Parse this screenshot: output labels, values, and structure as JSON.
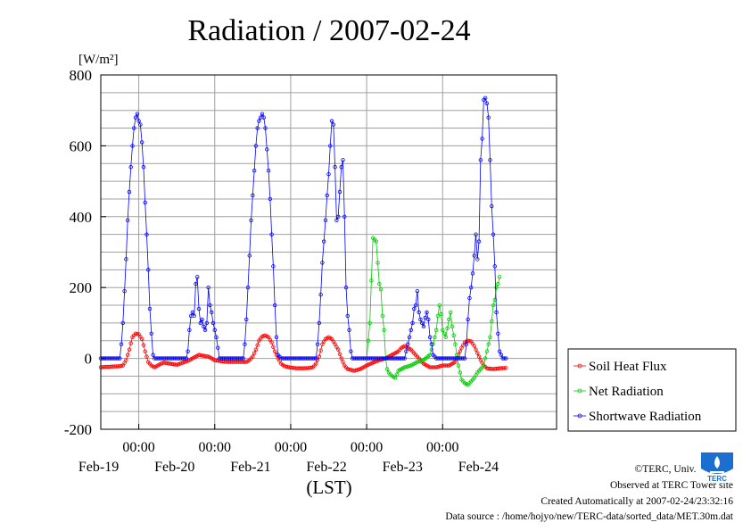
{
  "chart_data": {
    "type": "line",
    "title": "Radiation / 2007-02-24",
    "ylabel": "[W/m²]",
    "xlabel": "(LST)",
    "ylim": [
      -200,
      800
    ],
    "yticks": [
      -200,
      0,
      200,
      400,
      600,
      800
    ],
    "x_unit": "hours since Feb-18 12:00 LST",
    "xlim": [
      0,
      144
    ],
    "x_midnight_hours": [
      12,
      36,
      60,
      84,
      108
    ],
    "x_tick_labels": [
      {
        "time": "00:00",
        "date": "Feb-19"
      },
      {
        "time": "00:00",
        "date": "Feb-20"
      },
      {
        "time": "00:00",
        "date": "Feb-21"
      },
      {
        "time": "00:00",
        "date": "Feb-22"
      },
      {
        "time": "00:00",
        "date": "Feb-23"
      },
      {
        "time": "",
        "date": "Feb-24"
      }
    ],
    "grid": true,
    "legend_position": "right",
    "series": [
      {
        "name": "Soil Heat Flux",
        "color": "#ff0000",
        "marker": "circle",
        "points": [
          [
            0,
            -25
          ],
          [
            2,
            -24
          ],
          [
            4,
            -23
          ],
          [
            6,
            -22
          ],
          [
            7,
            -20
          ],
          [
            8,
            -5
          ],
          [
            9,
            25
          ],
          [
            10,
            60
          ],
          [
            11,
            70
          ],
          [
            12,
            68
          ],
          [
            13,
            55
          ],
          [
            14,
            20
          ],
          [
            15,
            -10
          ],
          [
            16,
            -20
          ],
          [
            17,
            -25
          ],
          [
            18,
            -20
          ],
          [
            19,
            -15
          ],
          [
            20,
            -12
          ],
          [
            22,
            -15
          ],
          [
            24,
            -18
          ],
          [
            26,
            -12
          ],
          [
            28,
            -5
          ],
          [
            30,
            5
          ],
          [
            31,
            10
          ],
          [
            32,
            8
          ],
          [
            34,
            5
          ],
          [
            36,
            -5
          ],
          [
            38,
            -8
          ],
          [
            40,
            -10
          ],
          [
            42,
            -10
          ],
          [
            44,
            -10
          ],
          [
            46,
            -10
          ],
          [
            47,
            -5
          ],
          [
            48,
            5
          ],
          [
            49,
            25
          ],
          [
            50,
            50
          ],
          [
            51,
            62
          ],
          [
            52,
            65
          ],
          [
            53,
            60
          ],
          [
            54,
            45
          ],
          [
            55,
            20
          ],
          [
            56,
            0
          ],
          [
            57,
            -15
          ],
          [
            58,
            -22
          ],
          [
            60,
            -26
          ],
          [
            62,
            -28
          ],
          [
            64,
            -28
          ],
          [
            66,
            -27
          ],
          [
            67,
            -25
          ],
          [
            68,
            -15
          ],
          [
            69,
            5
          ],
          [
            70,
            40
          ],
          [
            71,
            55
          ],
          [
            72,
            60
          ],
          [
            73,
            55
          ],
          [
            74,
            40
          ],
          [
            75,
            25
          ],
          [
            76,
            0
          ],
          [
            77,
            -20
          ],
          [
            78,
            -30
          ],
          [
            80,
            -35
          ],
          [
            82,
            -30
          ],
          [
            84,
            -20
          ],
          [
            86,
            -12
          ],
          [
            88,
            -5
          ],
          [
            90,
            0
          ],
          [
            92,
            10
          ],
          [
            94,
            20
          ],
          [
            95,
            30
          ],
          [
            96,
            35
          ],
          [
            97,
            30
          ],
          [
            98,
            25
          ],
          [
            99,
            15
          ],
          [
            100,
            5
          ],
          [
            101,
            -5
          ],
          [
            102,
            -15
          ],
          [
            103,
            -20
          ],
          [
            104,
            -25
          ],
          [
            106,
            -25
          ],
          [
            108,
            -20
          ],
          [
            110,
            -20
          ],
          [
            112,
            -10
          ],
          [
            113,
            10
          ],
          [
            114,
            30
          ],
          [
            115,
            45
          ],
          [
            116,
            50
          ],
          [
            117,
            48
          ],
          [
            118,
            35
          ],
          [
            119,
            15
          ],
          [
            120,
            -5
          ],
          [
            121,
            -20
          ],
          [
            122,
            -28
          ],
          [
            124,
            -30
          ],
          [
            126,
            -28
          ],
          [
            128,
            -27
          ]
        ]
      },
      {
        "name": "Net Radiation",
        "color": "#00cc00",
        "marker": "circle",
        "points": [
          [
            84,
            0
          ],
          [
            85,
            100
          ],
          [
            86,
            340
          ],
          [
            87,
            330
          ],
          [
            88,
            210
          ],
          [
            88.5,
            195
          ],
          [
            89,
            120
          ],
          [
            89.5,
            80
          ],
          [
            90,
            0
          ],
          [
            90.5,
            -30
          ],
          [
            91,
            -40
          ],
          [
            92,
            -50
          ],
          [
            93,
            -55
          ],
          [
            94,
            -35
          ],
          [
            96,
            -25
          ],
          [
            98,
            -20
          ],
          [
            100,
            -10
          ],
          [
            102,
            -5
          ],
          [
            104,
            10
          ],
          [
            105,
            40
          ],
          [
            106,
            80
          ],
          [
            106.5,
            120
          ],
          [
            107,
            150
          ],
          [
            107.5,
            125
          ],
          [
            108,
            80
          ],
          [
            109,
            60
          ],
          [
            110,
            110
          ],
          [
            110.5,
            130
          ],
          [
            111,
            90
          ],
          [
            112,
            40
          ],
          [
            113,
            -20
          ],
          [
            114,
            -60
          ],
          [
            115,
            -70
          ],
          [
            116,
            -75
          ],
          [
            117,
            -65
          ],
          [
            118,
            -55
          ],
          [
            119,
            -40
          ],
          [
            120,
            -30
          ],
          [
            121,
            -20
          ],
          [
            122,
            20
          ],
          [
            123,
            60
          ],
          [
            124,
            150
          ],
          [
            124.5,
            165
          ],
          [
            125,
            200
          ],
          [
            125.5,
            210
          ],
          [
            126,
            230
          ]
        ]
      },
      {
        "name": "Shortwave Radiation",
        "color": "#0000ff",
        "marker": "circle",
        "points": [
          [
            0,
            0
          ],
          [
            2,
            0
          ],
          [
            4,
            0
          ],
          [
            6,
            0
          ],
          [
            6.5,
            40
          ],
          [
            7,
            100
          ],
          [
            7.5,
            190
          ],
          [
            8,
            280
          ],
          [
            8.5,
            390
          ],
          [
            9,
            470
          ],
          [
            9.5,
            540
          ],
          [
            10,
            600
          ],
          [
            10.5,
            650
          ],
          [
            11,
            680
          ],
          [
            11.5,
            690
          ],
          [
            12,
            670
          ],
          [
            12.5,
            660
          ],
          [
            13,
            610
          ],
          [
            13.5,
            540
          ],
          [
            14,
            440
          ],
          [
            14.5,
            350
          ],
          [
            15,
            250
          ],
          [
            15.5,
            140
          ],
          [
            16,
            70
          ],
          [
            16.5,
            10
          ],
          [
            17,
            0
          ],
          [
            20,
            0
          ],
          [
            24,
            0
          ],
          [
            27,
            0
          ],
          [
            27.5,
            20
          ],
          [
            28,
            80
          ],
          [
            28.5,
            120
          ],
          [
            29,
            130
          ],
          [
            29.5,
            120
          ],
          [
            30,
            210
          ],
          [
            30.5,
            230
          ],
          [
            31,
            140
          ],
          [
            31.5,
            100
          ],
          [
            32,
            110
          ],
          [
            32.5,
            90
          ],
          [
            33,
            80
          ],
          [
            33.5,
            100
          ],
          [
            34,
            200
          ],
          [
            34.5,
            150
          ],
          [
            35,
            130
          ],
          [
            35.5,
            100
          ],
          [
            36,
            80
          ],
          [
            36.5,
            60
          ],
          [
            37,
            30
          ],
          [
            37.5,
            0
          ],
          [
            40,
            0
          ],
          [
            44,
            0
          ],
          [
            45,
            0
          ],
          [
            45.5,
            40
          ],
          [
            46,
            110
          ],
          [
            46.5,
            200
          ],
          [
            47,
            290
          ],
          [
            47.5,
            390
          ],
          [
            48,
            460
          ],
          [
            48.5,
            530
          ],
          [
            49,
            600
          ],
          [
            49.5,
            650
          ],
          [
            50,
            670
          ],
          [
            50.5,
            680
          ],
          [
            51,
            690
          ],
          [
            51.5,
            680
          ],
          [
            52,
            650
          ],
          [
            52.5,
            590
          ],
          [
            53,
            530
          ],
          [
            53.5,
            450
          ],
          [
            54,
            350
          ],
          [
            54.5,
            260
          ],
          [
            55,
            150
          ],
          [
            55.5,
            60
          ],
          [
            56,
            10
          ],
          [
            57,
            0
          ],
          [
            60,
            0
          ],
          [
            64,
            0
          ],
          [
            68,
            0
          ],
          [
            68.5,
            40
          ],
          [
            69,
            100
          ],
          [
            69.5,
            180
          ],
          [
            70,
            270
          ],
          [
            70.5,
            330
          ],
          [
            71,
            390
          ],
          [
            71.5,
            460
          ],
          [
            72,
            520
          ],
          [
            72.5,
            600
          ],
          [
            73,
            670
          ],
          [
            73.5,
            660
          ],
          [
            74,
            540
          ],
          [
            74.5,
            390
          ],
          [
            75,
            400
          ],
          [
            75.5,
            470
          ],
          [
            76,
            540
          ],
          [
            76.5,
            560
          ],
          [
            77,
            400
          ],
          [
            77.5,
            200
          ],
          [
            78,
            120
          ],
          [
            78.5,
            80
          ],
          [
            79,
            20
          ],
          [
            79.5,
            0
          ],
          [
            84,
            0
          ],
          [
            88,
            0
          ],
          [
            92,
            0
          ],
          [
            96,
            0
          ],
          [
            96.5,
            20
          ],
          [
            97,
            40
          ],
          [
            97.5,
            60
          ],
          [
            98,
            80
          ],
          [
            98.5,
            100
          ],
          [
            99,
            140
          ],
          [
            99.5,
            150
          ],
          [
            100,
            190
          ],
          [
            100.5,
            130
          ],
          [
            101,
            110
          ],
          [
            101.5,
            100
          ],
          [
            102,
            90
          ],
          [
            102.5,
            115
          ],
          [
            103,
            130
          ],
          [
            103.5,
            110
          ],
          [
            104,
            60
          ],
          [
            104.5,
            40
          ],
          [
            105,
            10
          ],
          [
            106,
            0
          ],
          [
            108,
            0
          ],
          [
            112,
            0
          ],
          [
            115,
            0
          ],
          [
            115.5,
            40
          ],
          [
            116,
            110
          ],
          [
            116.5,
            170
          ],
          [
            117,
            200
          ],
          [
            117.5,
            240
          ],
          [
            118,
            290
          ],
          [
            118.5,
            350
          ],
          [
            119,
            280
          ],
          [
            119.5,
            330
          ],
          [
            120,
            560
          ],
          [
            120.5,
            620
          ],
          [
            121,
            730
          ],
          [
            121.5,
            735
          ],
          [
            122,
            720
          ],
          [
            122.5,
            680
          ],
          [
            123,
            560
          ],
          [
            123.5,
            430
          ],
          [
            124,
            350
          ],
          [
            124.5,
            260
          ],
          [
            125,
            130
          ],
          [
            125.5,
            70
          ],
          [
            126,
            20
          ],
          [
            127,
            0
          ],
          [
            128,
            0
          ]
        ]
      }
    ]
  },
  "footer": {
    "copyright": "©TERC, Univ. Tsukuba",
    "observed": "Observed at TERC Tower site",
    "created": "Created Automatically at 2007-02-24/23:32:16",
    "source": "Data source : /home/hojyo/new/TERC-data/sorted_data/MET.30m.dat"
  },
  "logo": {
    "text": "TERC",
    "color": "#1a6fd0",
    "icon": "terc-logo-icon"
  }
}
